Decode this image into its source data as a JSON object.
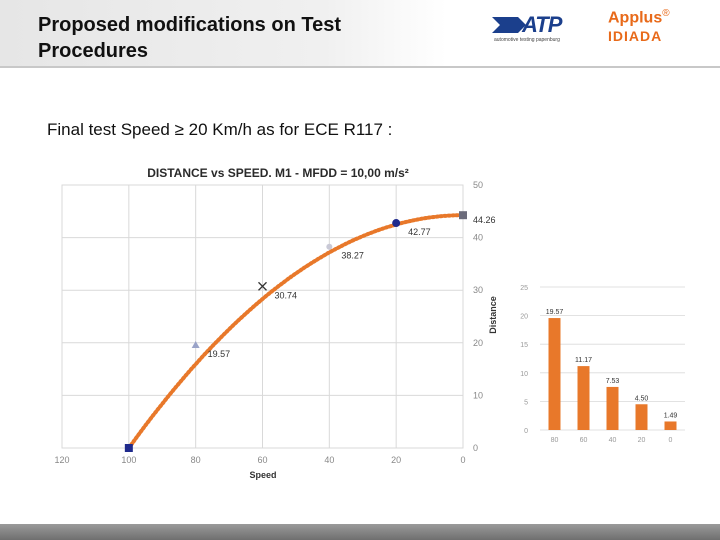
{
  "header": {
    "title_line1": "Proposed modifications on Test",
    "title_line2": "Procedures",
    "logo_atp": "ATP",
    "logo_atp_sub": "automotive testing papenburg",
    "logo_applus": "Applus",
    "logo_applus_reg": "®",
    "logo_idiada": "IDIADA"
  },
  "subtitle": "Final test Speed ≥ 20 Km/h as for ECE R117 :",
  "colors": {
    "accent": "#e8782a",
    "marker": "#1f2a8c",
    "grid": "#d9d9d9",
    "footer": "#7f7f7f"
  },
  "chart_data": [
    {
      "type": "line",
      "title": "DISTANCE vs SPEED. M1 - MFDD = 10,00 m/s²",
      "xlabel": "Speed",
      "ylabel": "Distance",
      "xlim": [
        120,
        0
      ],
      "ylim": [
        0,
        50
      ],
      "x_ticks": [
        120,
        100,
        80,
        60,
        40,
        20,
        0
      ],
      "y_ticks": [
        0,
        10,
        20,
        30,
        40,
        50
      ],
      "grid": true,
      "y_axis_side": "right",
      "annotations": [
        {
          "x": 100,
          "y": 0,
          "marker": "square",
          "label": ""
        },
        {
          "x": 80,
          "y": 19.57,
          "marker": "triangle",
          "label": "19.57"
        },
        {
          "x": 60,
          "y": 30.74,
          "marker": "x",
          "label": "30.74"
        },
        {
          "x": 40,
          "y": 38.27,
          "marker": "star",
          "label": "38.27"
        },
        {
          "x": 20,
          "y": 42.77,
          "marker": "circle",
          "label": "42.77"
        },
        {
          "x": 0,
          "y": 44.26,
          "marker": "square",
          "label": "44.26"
        }
      ]
    },
    {
      "type": "bar",
      "categories": [
        "80",
        "60",
        "40",
        "20",
        "0"
      ],
      "values": [
        19.57,
        11.17,
        7.53,
        4.5,
        1.49
      ],
      "data_labels": [
        "19.57",
        "11.17",
        "7.53",
        "4.50",
        "1.49"
      ],
      "ylim": [
        0,
        25
      ],
      "y_ticks": [
        "0",
        "5",
        "10",
        "15",
        "20",
        "25"
      ],
      "grid": true
    }
  ]
}
